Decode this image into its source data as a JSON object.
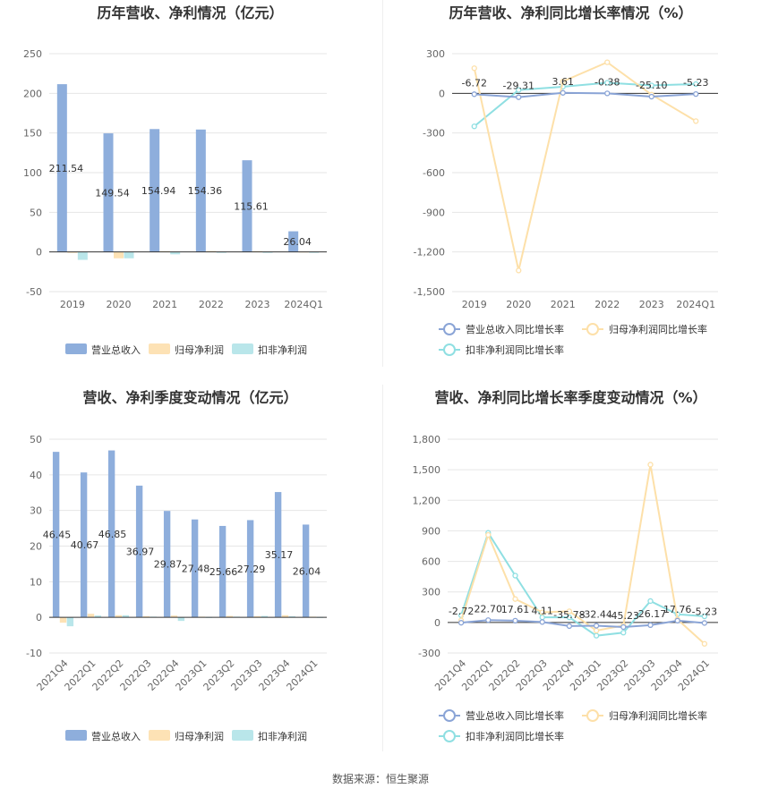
{
  "colors": {
    "revenue": "#8eaedc",
    "net_profit": "#fde2b5",
    "deducted_profit": "#b9e6ea",
    "revenue_line": "#8aa4d6",
    "net_line": "#fde0a9",
    "deducted_line": "#8fdfe2"
  },
  "source": "数据来源：恒生聚源",
  "chart_data": [
    {
      "id": "annual_bar",
      "type": "bar",
      "title": "历年营收、净利情况（亿元）",
      "categories": [
        "2019",
        "2020",
        "2021",
        "2022",
        "2023",
        "2024Q1"
      ],
      "ylim": [
        -50,
        250
      ],
      "yticks": [
        -50,
        0,
        50,
        100,
        150,
        200,
        250
      ],
      "series": [
        {
          "name": "营业总收入",
          "values": [
            211.54,
            149.54,
            154.94,
            154.36,
            115.61,
            26.04
          ],
          "labels": [
            "211.54",
            "149.54",
            "154.94",
            "154.36",
            "115.61",
            "26.04"
          ]
        },
        {
          "name": "归母净利润",
          "values": [
            -1.0,
            -8.0,
            1.0,
            1.2,
            1.0,
            0.5
          ]
        },
        {
          "name": "扣非净利润",
          "values": [
            -10.0,
            -8.0,
            -3.0,
            -0.5,
            -0.5,
            -0.3
          ]
        }
      ],
      "legend": "bottom",
      "grid": true
    },
    {
      "id": "annual_line",
      "type": "line",
      "title": "历年营收、净利同比增长率情况（%）",
      "categories": [
        "2019",
        "2020",
        "2021",
        "2022",
        "2023",
        "2024Q1"
      ],
      "ylim": [
        -1500,
        300
      ],
      "yticks": [
        -1500,
        -1200,
        -900,
        -600,
        -300,
        0,
        300
      ],
      "series": [
        {
          "name": "营业总收入同比增长率",
          "values": [
            -6.72,
            -29.31,
            3.61,
            -0.38,
            -25.1,
            -5.23
          ],
          "labels": [
            "-6.72",
            "-29.31",
            "3.61",
            "-0.38",
            "-25.10",
            "-5.23"
          ]
        },
        {
          "name": "归母净利润同比增长率",
          "values": [
            190,
            -1340,
            90,
            235,
            -10,
            -210
          ]
        },
        {
          "name": "扣非净利润同比增长率",
          "values": [
            -250,
            25,
            50,
            80,
            60,
            70
          ]
        }
      ],
      "legend": "bottom",
      "grid": true
    },
    {
      "id": "quarter_bar",
      "type": "bar",
      "title": "营收、净利季度变动情况（亿元）",
      "categories": [
        "2021Q4",
        "2022Q1",
        "2022Q2",
        "2022Q3",
        "2022Q4",
        "2023Q1",
        "2023Q2",
        "2023Q3",
        "2023Q4",
        "2024Q1"
      ],
      "ylim": [
        -10,
        50
      ],
      "yticks": [
        -10,
        0,
        10,
        20,
        30,
        40,
        50
      ],
      "series": [
        {
          "name": "营业总收入",
          "values": [
            46.45,
            40.67,
            46.85,
            36.97,
            29.87,
            27.48,
            25.66,
            27.29,
            35.17,
            26.04
          ],
          "labels": [
            "46.45",
            "40.67",
            "46.85",
            "36.97",
            "29.87",
            "27.48",
            "25.66",
            "27.29",
            "35.17",
            "26.04"
          ]
        },
        {
          "name": "归母净利润",
          "values": [
            -1.5,
            1.0,
            0.6,
            0.3,
            0.5,
            0.2,
            0.4,
            0.3,
            0.6,
            0.2
          ]
        },
        {
          "name": "扣非净利润",
          "values": [
            -2.5,
            0.5,
            0.6,
            0.2,
            -1.0,
            0.1,
            0.2,
            0.4,
            0.3,
            0.1
          ]
        }
      ],
      "legend": "bottom",
      "grid": true
    },
    {
      "id": "quarter_line",
      "type": "line",
      "title": "营收、净利同比增长率季度变动情况（%）",
      "categories": [
        "2021Q4",
        "2022Q1",
        "2022Q2",
        "2022Q3",
        "2022Q4",
        "2023Q1",
        "2023Q2",
        "2023Q3",
        "2023Q4",
        "2024Q1"
      ],
      "ylim": [
        -300,
        1800
      ],
      "yticks": [
        -300,
        0,
        300,
        600,
        900,
        1200,
        1500,
        1800
      ],
      "series": [
        {
          "name": "营业总收入同比增长率",
          "values": [
            -2.72,
            22.7,
            17.61,
            4.11,
            -35.78,
            -32.44,
            -45.23,
            -26.17,
            17.76,
            -5.23
          ],
          "labels": [
            "-2.72",
            "22.70",
            "17.61",
            "4.11",
            "-35.78",
            "-32.44",
            "-45.23",
            "-26.17",
            "17.76",
            "-5.23"
          ]
        },
        {
          "name": "归母净利润同比增长率",
          "values": [
            20,
            860,
            230,
            100,
            110,
            -80,
            -30,
            1550,
            30,
            -210
          ]
        },
        {
          "name": "扣非净利润同比增长率",
          "values": [
            70,
            880,
            460,
            50,
            50,
            -130,
            -100,
            210,
            80,
            60
          ]
        }
      ],
      "legend": "bottom",
      "grid": true
    }
  ]
}
